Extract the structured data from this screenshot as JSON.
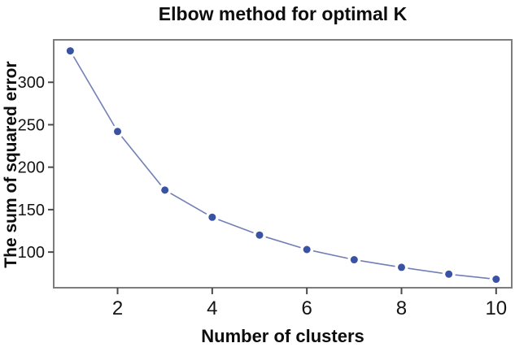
{
  "chart_data": {
    "type": "line",
    "title": "Elbow method for optimal K",
    "xlabel": "Number of clusters",
    "ylabel": "The sum of squared error",
    "x": [
      1,
      2,
      3,
      4,
      5,
      6,
      7,
      8,
      9,
      10
    ],
    "series": [
      {
        "name": "The sum of squared error",
        "values": [
          337,
          242,
          173,
          141,
          120,
          103,
          91,
          82,
          74,
          68
        ]
      }
    ],
    "xticks": [
      "2",
      "4",
      "6",
      "8",
      "10"
    ],
    "xtick_values": [
      2,
      4,
      6,
      8,
      10
    ],
    "yticks": [
      "100",
      "150",
      "200",
      "250",
      "300"
    ],
    "ytick_values": [
      100,
      150,
      200,
      250,
      300
    ],
    "xlim": [
      0.65,
      10.33
    ],
    "ylim": [
      58,
      350
    ],
    "grid": false,
    "legend": "none",
    "colors": {
      "line": "#707fb6",
      "marker": "#3a52a4",
      "frame": "#7d7d7d",
      "tick": "#4a4a4a",
      "text": "#141414",
      "background": "#ffffff"
    }
  }
}
